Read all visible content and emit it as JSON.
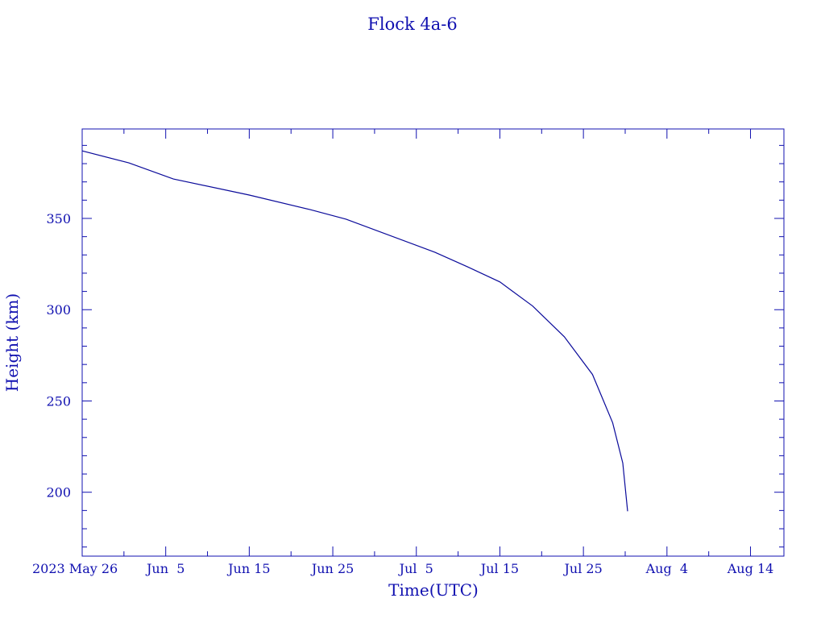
{
  "chart_data": {
    "type": "line",
    "title": "Flock 4a-6",
    "xlabel": "Time(UTC)",
    "ylabel": "Height (km)",
    "color": "#0a0a9a",
    "axis_color": "#1010b0",
    "grid": false,
    "xlim": [
      "2023-05-26T00:00:00Z",
      "2023-08-18T00:00:00Z"
    ],
    "ylim": [
      165,
      399
    ],
    "x_ticks": [
      {
        "date": "2023-05-26T00:00:00Z",
        "label": "2023 May 26"
      },
      {
        "date": "2023-06-05T00:00:00Z",
        "label": "Jun  5"
      },
      {
        "date": "2023-06-15T00:00:00Z",
        "label": "Jun 15"
      },
      {
        "date": "2023-06-25T00:00:00Z",
        "label": "Jun 25"
      },
      {
        "date": "2023-07-05T00:00:00Z",
        "label": "Jul  5"
      },
      {
        "date": "2023-07-15T00:00:00Z",
        "label": "Jul 15"
      },
      {
        "date": "2023-07-25T00:00:00Z",
        "label": "Jul 25"
      },
      {
        "date": "2023-08-04T00:00:00Z",
        "label": "Aug  4"
      },
      {
        "date": "2023-08-14T00:00:00Z",
        "label": "Aug 14"
      }
    ],
    "y_ticks": [
      200,
      250,
      300,
      350
    ],
    "series": [
      {
        "x": [
          "2023-05-26T00:00:00Z",
          "2023-05-31T14:00:00Z",
          "2023-06-05T22:00:00Z",
          "2023-06-15T00:00:00Z",
          "2023-06-22T07:00:00Z",
          "2023-06-26T14:00:00Z",
          "2023-07-07T05:00:00Z",
          "2023-07-11T02:00:00Z",
          "2023-07-15T00:00:00Z",
          "2023-07-18T22:00:00Z",
          "2023-07-22T17:00:00Z",
          "2023-07-26T02:00:00Z",
          "2023-07-28T12:00:00Z",
          "2023-07-29T17:00:00Z",
          "2023-07-30T07:00:00Z"
        ],
        "y": [
          387.0,
          380.4,
          371.6,
          362.8,
          354.8,
          349.6,
          331.5,
          323.6,
          315.2,
          302.0,
          285.2,
          264.5,
          238.1,
          216.0,
          189.6
        ]
      }
    ]
  }
}
